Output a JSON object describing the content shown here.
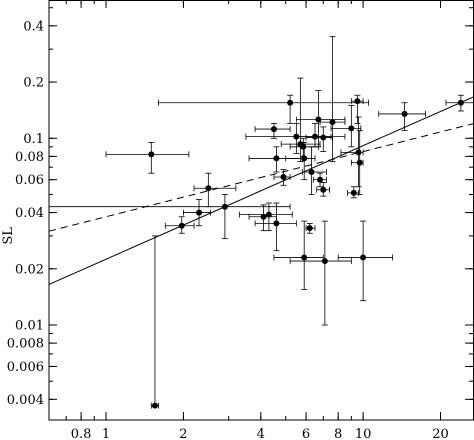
{
  "chart_data": {
    "type": "scatter",
    "title": "",
    "xlabel": "",
    "ylabel": "SL",
    "xscale": "log",
    "yscale": "log",
    "xlim": [
      0.6,
      27
    ],
    "ylim": [
      0.0031,
      0.55
    ],
    "grid": false,
    "x_tick_labels": [
      {
        "value": 0.8,
        "label": "0.8"
      },
      {
        "value": 1,
        "label": "1"
      },
      {
        "value": 2,
        "label": "2"
      },
      {
        "value": 4,
        "label": "4"
      },
      {
        "value": 6,
        "label": "6"
      },
      {
        "value": 8,
        "label": "8"
      },
      {
        "value": 10,
        "label": "10"
      },
      {
        "value": 20,
        "label": "20"
      }
    ],
    "y_tick_labels": [
      {
        "value": 0.004,
        "label": "0.004"
      },
      {
        "value": 0.006,
        "label": "0.006"
      },
      {
        "value": 0.008,
        "label": "0.008"
      },
      {
        "value": 0.01,
        "label": "0.01"
      },
      {
        "value": 0.02,
        "label": "0.02"
      },
      {
        "value": 0.04,
        "label": "0.04"
      },
      {
        "value": 0.06,
        "label": "0.06"
      },
      {
        "value": 0.08,
        "label": "0.08"
      },
      {
        "value": 0.1,
        "label": "0.1"
      },
      {
        "value": 0.2,
        "label": "0.2"
      },
      {
        "value": 0.4,
        "label": "0.4"
      }
    ],
    "points": [
      {
        "x": 1.5,
        "y": 0.082,
        "xerr": [
          1.0,
          2.1
        ],
        "yerr": [
          0.065,
          0.095
        ]
      },
      {
        "x": 1.55,
        "y": 0.0037,
        "xerr": [
          1.5,
          1.6
        ],
        "yerr": [
          0.0037,
          0.03
        ]
      },
      {
        "x": 1.97,
        "y": 0.034,
        "xerr": [
          1.7,
          2.2
        ],
        "yerr": [
          0.031,
          0.038
        ]
      },
      {
        "x": 2.3,
        "y": 0.04,
        "xerr": [
          2.0,
          2.55
        ],
        "yerr": [
          0.034,
          0.047
        ]
      },
      {
        "x": 2.5,
        "y": 0.054,
        "xerr": [
          2.2,
          3.2
        ],
        "yerr": [
          0.043,
          0.065
        ]
      },
      {
        "x": 2.9,
        "y": 0.043,
        "xerr": [
          0.6,
          5.2
        ],
        "yerr": [
          0.029,
          0.05
        ]
      },
      {
        "x": 4.1,
        "y": 0.038,
        "xerr": [
          3.6,
          4.6
        ],
        "yerr": [
          0.032,
          0.044
        ]
      },
      {
        "x": 4.3,
        "y": 0.039,
        "xerr": [
          3.3,
          5.3
        ],
        "yerr": [
          0.032,
          0.045
        ]
      },
      {
        "x": 4.5,
        "y": 0.112,
        "xerr": [
          3.8,
          5.2
        ],
        "yerr": [
          0.1,
          0.12
        ]
      },
      {
        "x": 4.6,
        "y": 0.078,
        "xerr": [
          3.6,
          5.8
        ],
        "yerr": [
          0.066,
          0.09
        ]
      },
      {
        "x": 4.6,
        "y": 0.035,
        "xerr": [
          3.8,
          5.5
        ],
        "yerr": [
          0.025,
          0.045
        ]
      },
      {
        "x": 4.9,
        "y": 0.062,
        "xerr": [
          4.5,
          5.2
        ],
        "yerr": [
          0.056,
          0.068
        ]
      },
      {
        "x": 5.2,
        "y": 0.155,
        "xerr": [
          1.6,
          10.5
        ],
        "yerr": [
          0.12,
          0.17
        ]
      },
      {
        "x": 5.5,
        "y": 0.102,
        "xerr": [
          3.5,
          7.5
        ],
        "yerr": [
          0.083,
          0.12
        ]
      },
      {
        "x": 5.7,
        "y": 0.093,
        "xerr": [
          4.8,
          6.8
        ],
        "yerr": [
          0.075,
          0.21
        ]
      },
      {
        "x": 5.85,
        "y": 0.09,
        "xerr": [
          5.2,
          6.7
        ],
        "yerr": [
          0.08,
          0.1
        ]
      },
      {
        "x": 5.9,
        "y": 0.078,
        "xerr": [
          5.0,
          6.5
        ],
        "yerr": [
          0.06,
          0.095
        ]
      },
      {
        "x": 5.9,
        "y": 0.023,
        "xerr": [
          4.5,
          7.0
        ],
        "yerr": [
          0.0155,
          0.036
        ]
      },
      {
        "x": 6.2,
        "y": 0.033,
        "xerr": [
          6.0,
          6.5
        ],
        "yerr": [
          0.031,
          0.035
        ]
      },
      {
        "x": 6.3,
        "y": 0.066,
        "xerr": [
          5.8,
          7.2
        ],
        "yerr": [
          0.05,
          0.09
        ]
      },
      {
        "x": 6.5,
        "y": 0.102,
        "xerr": [
          5.5,
          8.5
        ],
        "yerr": [
          0.09,
          0.12
        ]
      },
      {
        "x": 6.7,
        "y": 0.126,
        "xerr": [
          5.5,
          8.5
        ],
        "yerr": [
          0.09,
          0.18
        ]
      },
      {
        "x": 6.8,
        "y": 0.06,
        "xerr": [
          6.4,
          7.2
        ],
        "yerr": [
          0.055,
          0.065
        ]
      },
      {
        "x": 7.0,
        "y": 0.101,
        "xerr": [
          6.0,
          7.6
        ],
        "yerr": [
          0.085,
          0.115
        ]
      },
      {
        "x": 7.0,
        "y": 0.053,
        "xerr": [
          6.6,
          7.4
        ],
        "yerr": [
          0.049,
          0.058
        ]
      },
      {
        "x": 7.1,
        "y": 0.022,
        "xerr": [
          5.2,
          9.0
        ],
        "yerr": [
          0.01,
          0.036
        ]
      },
      {
        "x": 7.6,
        "y": 0.122,
        "xerr": [
          6.8,
          8.5
        ],
        "yerr": [
          0.075,
          0.35
        ]
      },
      {
        "x": 9.0,
        "y": 0.113,
        "xerr": [
          7.5,
          9.8
        ],
        "yerr": [
          0.09,
          0.15
        ]
      },
      {
        "x": 9.2,
        "y": 0.051,
        "xerr": [
          8.7,
          9.6
        ],
        "yerr": [
          0.048,
          0.055
        ]
      },
      {
        "x": 9.5,
        "y": 0.158,
        "xerr": [
          9.0,
          10.0
        ],
        "yerr": [
          0.12,
          0.17
        ]
      },
      {
        "x": 9.6,
        "y": 0.084,
        "xerr": [
          8.2,
          10.0
        ],
        "yerr": [
          0.055,
          0.13
        ]
      },
      {
        "x": 9.7,
        "y": 0.074,
        "xerr": [
          9.0,
          10.0
        ],
        "yerr": [
          0.05,
          0.11
        ]
      },
      {
        "x": 10.0,
        "y": 0.023,
        "xerr": [
          8.0,
          13.0
        ],
        "yerr": [
          0.0135,
          0.036
        ]
      },
      {
        "x": 14.5,
        "y": 0.135,
        "xerr": [
          11.5,
          17.5
        ],
        "yerr": [
          0.11,
          0.155
        ]
      },
      {
        "x": 24.0,
        "y": 0.155,
        "xerr": [
          21.0,
          27.0
        ],
        "yerr": [
          0.14,
          0.17
        ]
      }
    ],
    "lines": [
      {
        "style": "solid",
        "points": [
          [
            0.6,
            0.0165
          ],
          [
            27,
            0.167
          ]
        ]
      },
      {
        "style": "dashed",
        "points": [
          [
            0.6,
            0.0318
          ],
          [
            27,
            0.12
          ]
        ]
      }
    ]
  }
}
